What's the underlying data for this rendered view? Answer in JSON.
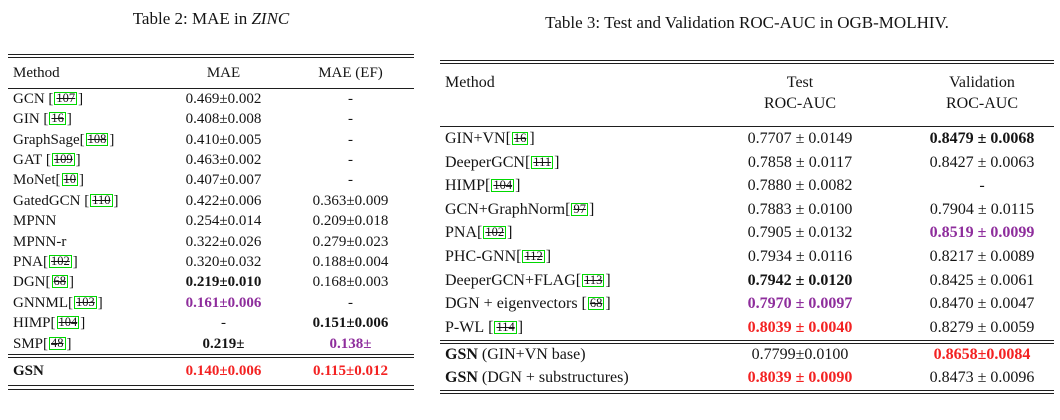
{
  "colors": {
    "citation_box_green": "#00d800",
    "best_value_purple": "#8E2D9C",
    "gsn_highlight_red": "#F32222",
    "text_black": "#141414",
    "background": "#ffffff"
  },
  "table2": {
    "title_prefix": "Table 2: MAE in ",
    "title_italic": "ZINC",
    "headers": [
      "Method",
      "MAE",
      "MAE (EF)"
    ],
    "rows": [
      {
        "name": "GCN",
        "cite": "107",
        "sp": true,
        "vals": [
          [
            "0.469±0.002",
            ""
          ],
          [
            "-",
            ""
          ]
        ]
      },
      {
        "name": "GIN",
        "cite": "16",
        "sp": true,
        "vals": [
          [
            "0.408±0.008",
            ""
          ],
          [
            "-",
            ""
          ]
        ]
      },
      {
        "name": "GraphSage",
        "cite": "108",
        "sp": false,
        "vals": [
          [
            "0.410±0.005",
            ""
          ],
          [
            "-",
            ""
          ]
        ]
      },
      {
        "name": "GAT",
        "cite": "109",
        "sp": true,
        "vals": [
          [
            "0.463±0.002",
            ""
          ],
          [
            "-",
            ""
          ]
        ]
      },
      {
        "name": "MoNet",
        "cite": "10",
        "sp": false,
        "vals": [
          [
            "0.407±0.007",
            ""
          ],
          [
            "-",
            ""
          ]
        ]
      },
      {
        "name": "GatedGCN",
        "cite": "110",
        "sp": true,
        "vals": [
          [
            "0.422±0.006",
            ""
          ],
          [
            "0.363±0.009",
            ""
          ]
        ]
      },
      {
        "name": "MPNN",
        "cite": null,
        "sp": false,
        "vals": [
          [
            "0.254±0.014",
            ""
          ],
          [
            "0.209±0.018",
            ""
          ]
        ]
      },
      {
        "name": "MPNN-r",
        "cite": null,
        "sp": false,
        "vals": [
          [
            "0.322±0.026",
            ""
          ],
          [
            "0.279±0.023",
            ""
          ]
        ]
      },
      {
        "name": "PNA",
        "cite": "102",
        "sp": false,
        "vals": [
          [
            "0.320±0.032",
            ""
          ],
          [
            "0.188±0.004",
            ""
          ]
        ]
      },
      {
        "name": "DGN",
        "cite": "68",
        "sp": false,
        "vals": [
          [
            "0.219±0.010",
            "b"
          ],
          [
            "0.168±0.003",
            ""
          ]
        ]
      },
      {
        "name": "GNNML",
        "cite": "103",
        "sp": false,
        "vals": [
          [
            "0.161±0.006",
            "bp"
          ],
          [
            "-",
            ""
          ]
        ]
      },
      {
        "name": "HIMP",
        "cite": "104",
        "sp": false,
        "vals": [
          [
            "-",
            ""
          ],
          [
            "0.151±0.006",
            "b"
          ]
        ]
      },
      {
        "name": "SMP",
        "cite": "48",
        "sp": false,
        "vals": [
          [
            "0.219±",
            "b"
          ],
          [
            "0.138±",
            "bp"
          ]
        ]
      }
    ],
    "footer_rows": [
      {
        "name_bold": "GSN",
        "name_rest": "",
        "vals": [
          [
            "0.140±0.006",
            "br"
          ],
          [
            "0.115±0.012",
            "br"
          ]
        ]
      }
    ]
  },
  "table3": {
    "title": "Table 3: Test and Validation ROC-AUC in OGB-MOLHIV.",
    "headers": [
      [
        "Method",
        ""
      ],
      [
        "Test",
        "ROC-AUC"
      ],
      [
        "Validation",
        "ROC-AUC"
      ]
    ],
    "rows": [
      {
        "name": "GIN+VN",
        "cite": "16",
        "sp": false,
        "vals": [
          [
            "0.7707 ± 0.0149",
            ""
          ],
          [
            "0.8479 ± 0.0068",
            "b"
          ]
        ]
      },
      {
        "name": "DeeperGCN",
        "cite": "111",
        "sp": false,
        "vals": [
          [
            "0.7858 ± 0.0117",
            ""
          ],
          [
            "0.8427 ± 0.0063",
            ""
          ]
        ]
      },
      {
        "name": "HIMP",
        "cite": "104",
        "sp": false,
        "vals": [
          [
            "0.7880 ± 0.0082",
            ""
          ],
          [
            "-",
            ""
          ]
        ]
      },
      {
        "name": "GCN+GraphNorm",
        "cite": "97",
        "sp": false,
        "vals": [
          [
            "0.7883 ± 0.0100",
            ""
          ],
          [
            "0.7904 ± 0.0115",
            ""
          ]
        ]
      },
      {
        "name": "PNA",
        "cite": "102",
        "sp": false,
        "vals": [
          [
            "0.7905 ± 0.0132",
            ""
          ],
          [
            "0.8519 ± 0.0099",
            "bp"
          ]
        ]
      },
      {
        "name": "PHC-GNN",
        "cite": "112",
        "sp": false,
        "vals": [
          [
            "0.7934 ± 0.0116",
            ""
          ],
          [
            "0.8217 ± 0.0089",
            ""
          ]
        ]
      },
      {
        "name": "DeeperGCN+FLAG",
        "cite": "113",
        "sp": false,
        "vals": [
          [
            "0.7942 ± 0.0120",
            "b"
          ],
          [
            "0.8425 ± 0.0061",
            ""
          ]
        ]
      },
      {
        "name": "DGN + eigenvectors",
        "cite": "68",
        "sp": true,
        "vals": [
          [
            "0.7970 ± 0.0097",
            "bp"
          ],
          [
            "0.8470 ± 0.0047",
            ""
          ]
        ]
      },
      {
        "name": "P-WL",
        "cite": "114",
        "sp": true,
        "vals": [
          [
            "0.8039 ± 0.0040",
            "br"
          ],
          [
            "0.8279 ± 0.0059",
            ""
          ]
        ]
      }
    ],
    "footer_rows": [
      {
        "name_bold": "GSN",
        "name_rest": " (GIN+VN base)",
        "vals": [
          [
            "0.7799±0.0100",
            ""
          ],
          [
            "0.8658±0.0084",
            "br"
          ]
        ]
      },
      {
        "name_bold": "GSN",
        "name_rest": " (DGN + substructures)",
        "vals": [
          [
            "0.8039 ± 0.0090",
            "br"
          ],
          [
            "0.8473 ± 0.0096",
            ""
          ]
        ]
      }
    ]
  }
}
